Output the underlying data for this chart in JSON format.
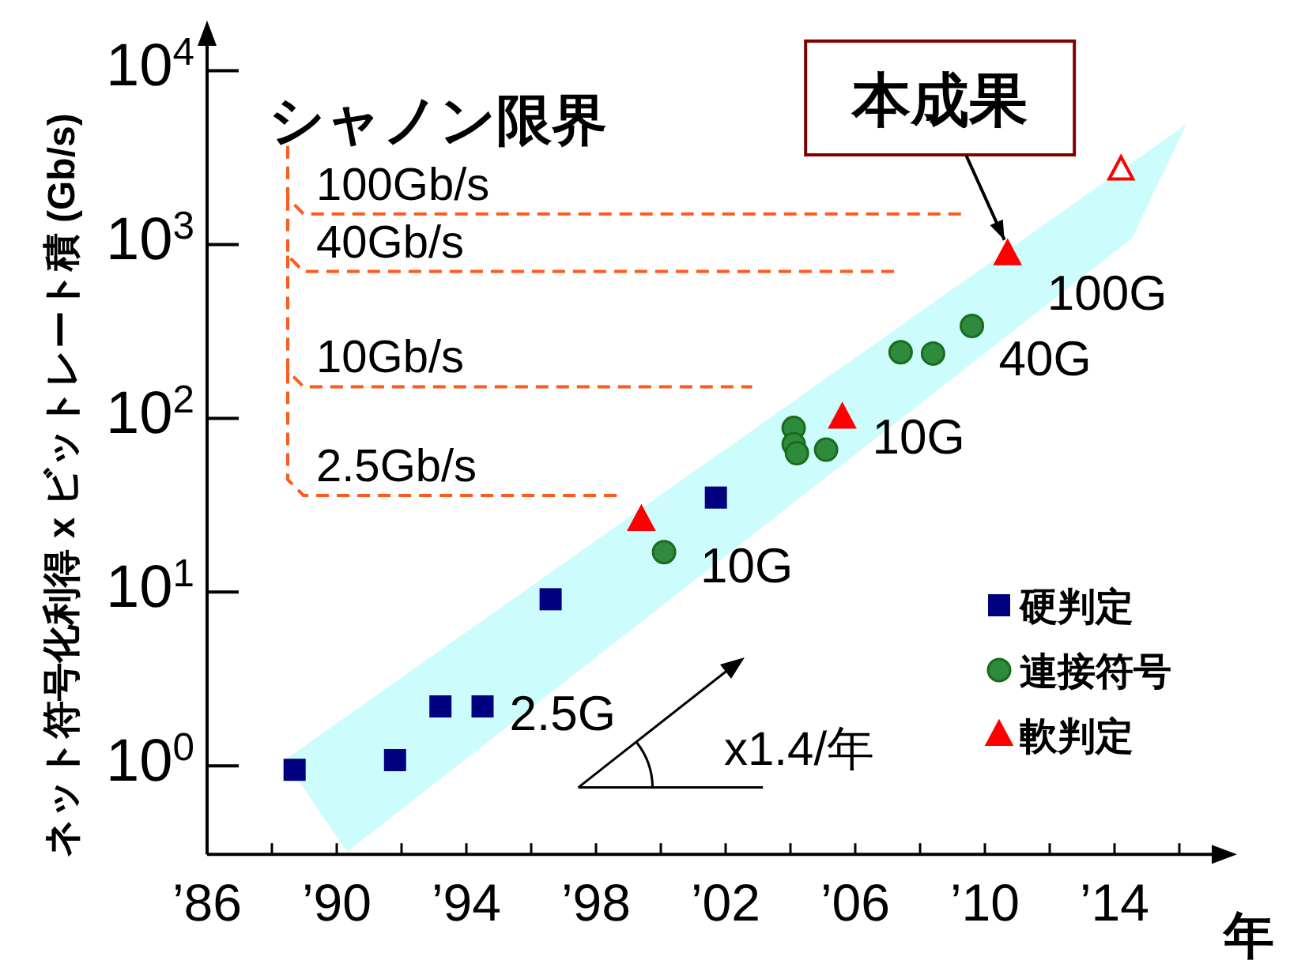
{
  "chart_data": {
    "type": "scatter",
    "xlabel": "年",
    "ylabel": "ネット符号化利得 x ビットレート積 (Gb/s)",
    "log": "y",
    "xlim": [
      1986,
      2017
    ],
    "ylim": [
      0.31,
      14500
    ],
    "xticks": [
      {
        "value": 1986,
        "label": "’86"
      },
      {
        "value": 1988,
        "label": null
      },
      {
        "value": 1990,
        "label": "’90"
      },
      {
        "value": 1992,
        "label": null
      },
      {
        "value": 1994,
        "label": "’94"
      },
      {
        "value": 1996,
        "label": null
      },
      {
        "value": 1998,
        "label": "’98"
      },
      {
        "value": 2000,
        "label": null
      },
      {
        "value": 2002,
        "label": "’02"
      },
      {
        "value": 2004,
        "label": null
      },
      {
        "value": 2006,
        "label": "’06"
      },
      {
        "value": 2008,
        "label": null
      },
      {
        "value": 2010,
        "label": "’10"
      },
      {
        "value": 2012,
        "label": null
      },
      {
        "value": 2014,
        "label": "’14"
      },
      {
        "value": 2016,
        "label": null
      }
    ],
    "yticks": [
      {
        "value": 1,
        "label": "10$^{0}$"
      },
      {
        "value": 10,
        "label": "10$^{1}$"
      },
      {
        "value": 100,
        "label": "10$^{2}$"
      },
      {
        "value": 1000,
        "label": "10$^{3}$"
      },
      {
        "value": 10000,
        "label": "10$^{4}$"
      }
    ],
    "grid": false,
    "legend": "right",
    "series": [
      {
        "name": "硬判定",
        "color": "#000080",
        "marker": "square",
        "x": [
          1988.7,
          1991.8,
          1993.2,
          1994.5,
          1996.6,
          2001.7
        ],
        "values": [
          0.95,
          1.08,
          2.2,
          2.2,
          9.1,
          35
        ]
      },
      {
        "name": "連接符号",
        "color": "#2e8b3e",
        "marker": "circle",
        "x": [
          2000.1,
          2004.1,
          2004.1,
          2004.2,
          2005.1,
          2007.4,
          2008.4,
          2009.6
        ],
        "values": [
          17,
          88,
          71,
          63,
          66,
          240,
          236,
          340
        ]
      },
      {
        "name": "軟判定",
        "color": "#ff0000",
        "marker": "triangle",
        "x": [
          1999.4,
          2005.6,
          2010.7
        ],
        "values": [
          26,
          101,
          880
        ]
      },
      {
        "color": "#ff0000",
        "marker": "triangle",
        "x": [
          2014.2
        ],
        "values": [
          2700
        ]
      }
    ],
    "ref_lines": [
      {
        "axis": "y",
        "value": 1500,
        "label": "100Gb/s",
        "color": "#ff5a1e",
        "line_style": "dashed"
      },
      {
        "axis": "y",
        "value": 700,
        "label": "40Gb/s",
        "color": "#ff5a1e",
        "line_style": "dashed"
      },
      {
        "axis": "y",
        "value": 152,
        "label": "10Gb/s",
        "color": "#ff5a1e",
        "line_style": "dashed"
      },
      {
        "axis": "y",
        "value": 36,
        "label": "2.5Gb/s",
        "color": "#ff5a1e",
        "line_style": "dashed"
      }
    ],
    "annotations": [
      "シャノン限界",
      {
        "text": "本成果",
        "x": 2010.7,
        "y": 880
      },
      {
        "text": "100G",
        "x": 2010.7,
        "y": 880
      },
      {
        "text": "40G",
        "x": 2009.6,
        "y": 340
      },
      {
        "text": "10G",
        "x": 2005.6,
        "y": 101
      },
      {
        "text": "10G",
        "x": 2000.1,
        "y": 17
      },
      {
        "text": "2.5G",
        "x": 1994.5,
        "y": 2.2
      },
      "x1.4/年"
    ]
  }
}
